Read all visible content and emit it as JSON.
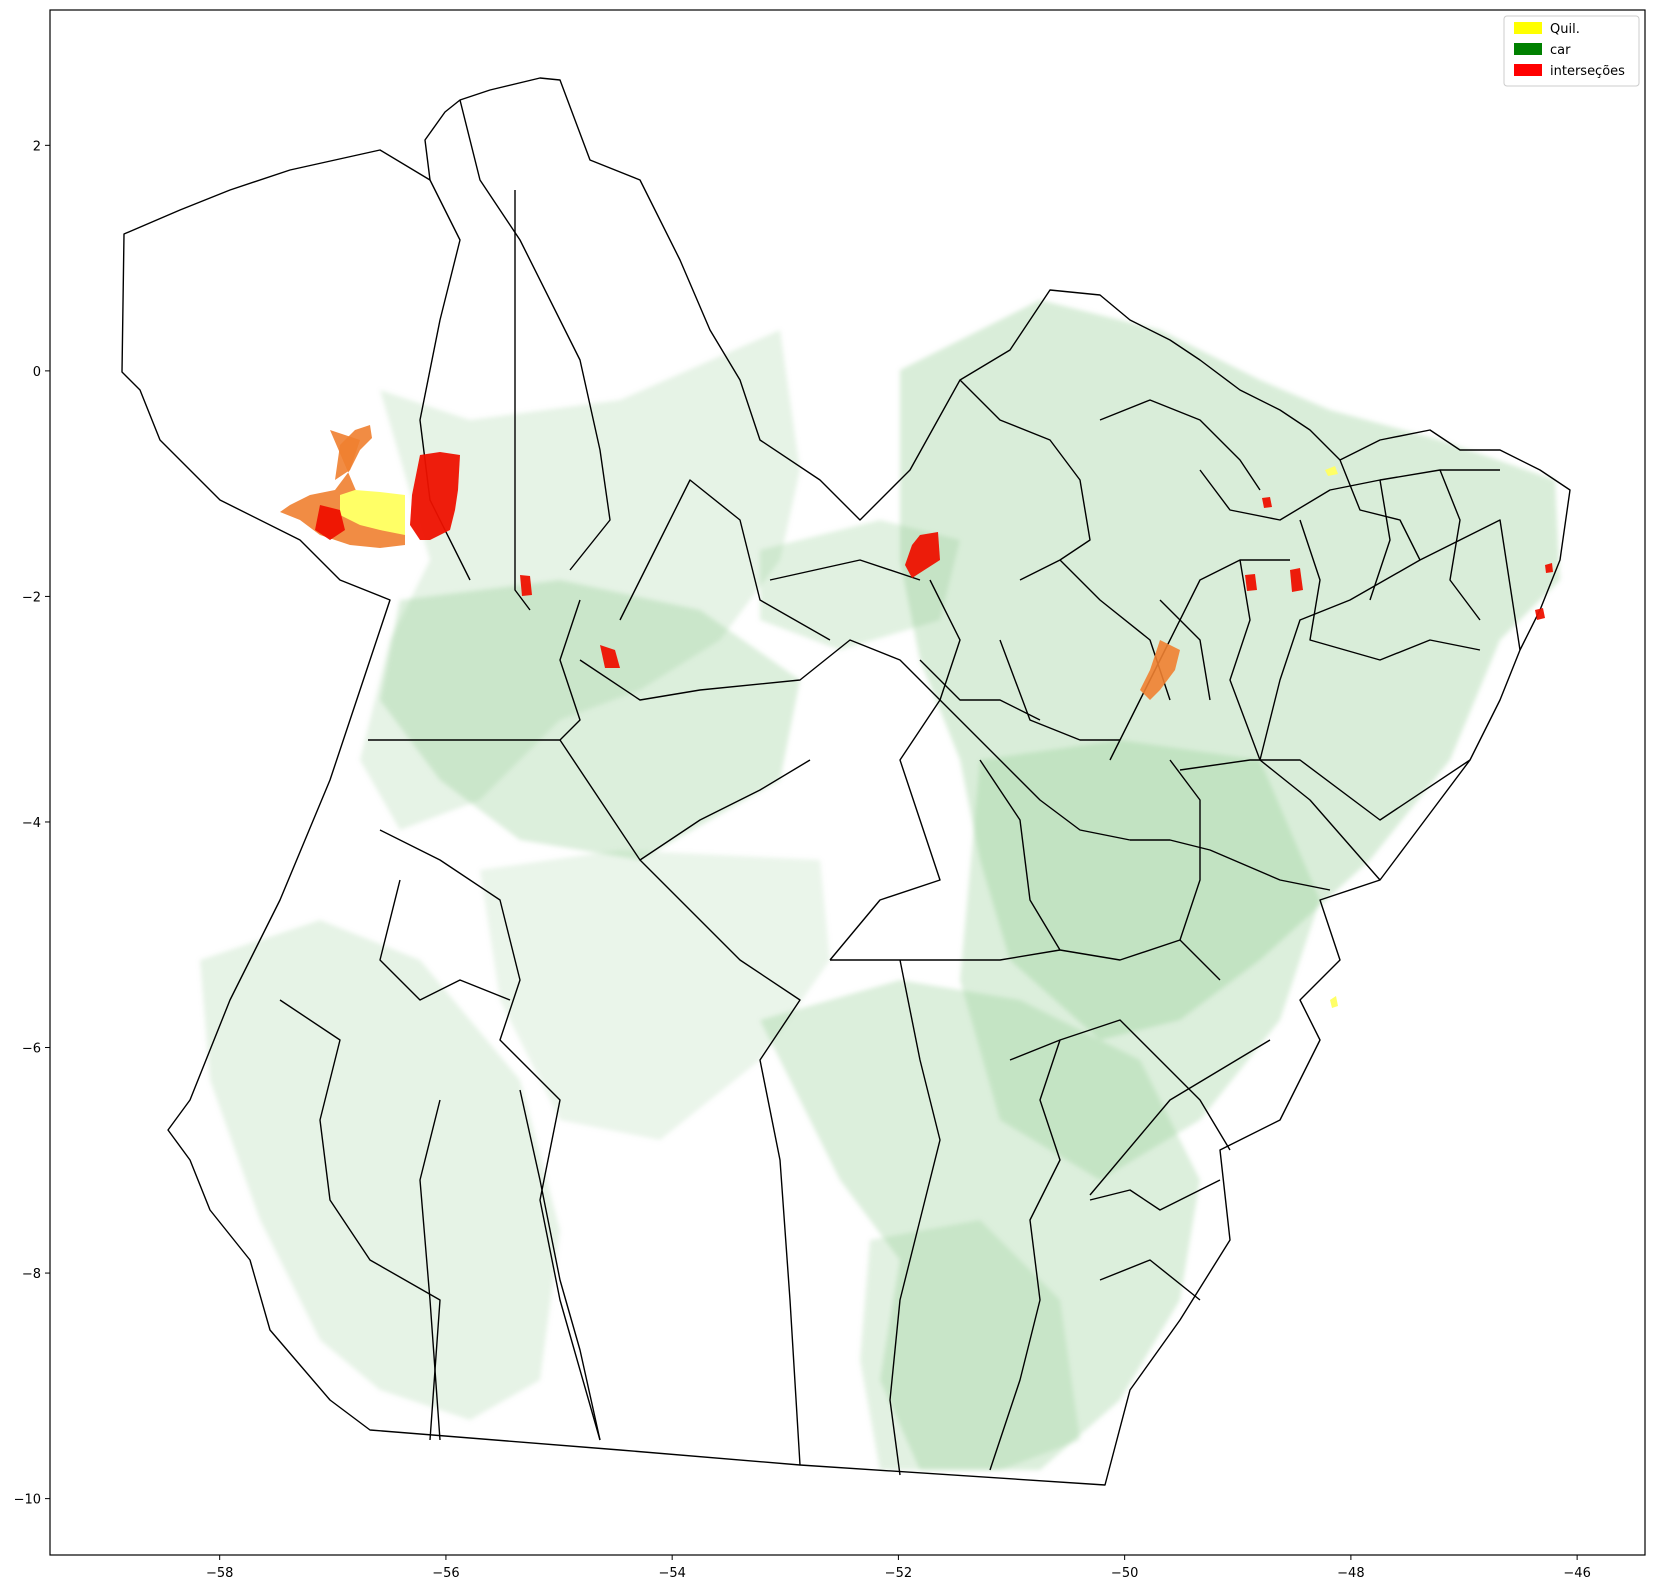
{
  "map": {
    "xlim": [
      -59.5,
      -45.4
    ],
    "ylim": [
      -10.5,
      3.2
    ],
    "x_ticks": [
      {
        "value": -58,
        "label": "−58"
      },
      {
        "value": -56,
        "label": "−56"
      },
      {
        "value": -54,
        "label": "−54"
      },
      {
        "value": -52,
        "label": "−52"
      },
      {
        "value": -50,
        "label": "−50"
      },
      {
        "value": -48,
        "label": "−48"
      },
      {
        "value": -46,
        "label": "−46"
      }
    ],
    "y_ticks": [
      {
        "value": 2,
        "label": "2"
      },
      {
        "value": 0,
        "label": "0"
      },
      {
        "value": -2,
        "label": "−2"
      },
      {
        "value": -4,
        "label": "−4"
      },
      {
        "value": -6,
        "label": "−6"
      },
      {
        "value": -8,
        "label": "−8"
      },
      {
        "value": -10,
        "label": "−10"
      }
    ],
    "legend_position": "top-right",
    "legend": [
      {
        "label": "Quil.",
        "color": "#ffff00"
      },
      {
        "label": "car",
        "color": "#008000"
      },
      {
        "label": "interseções",
        "color": "#ff0000"
      }
    ],
    "colors": {
      "car_fill": "#8cc98c",
      "boundary": "#000000",
      "quil_fill": "#ffff66",
      "overlap_fill": "#f08030",
      "intersection_fill": "#ee1100"
    }
  }
}
